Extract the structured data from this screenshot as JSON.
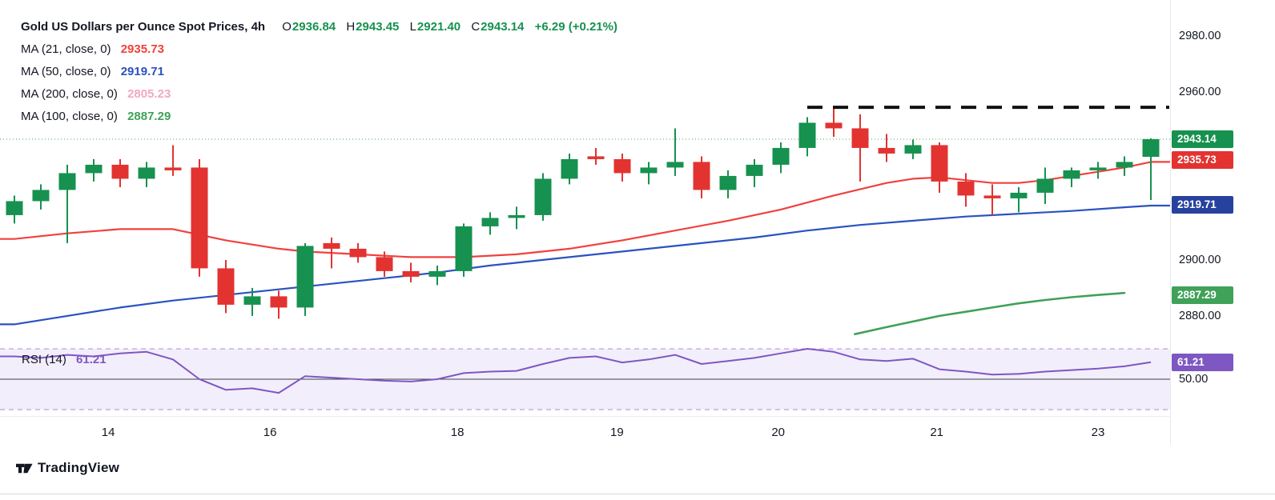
{
  "colors": {
    "up": "#17914f",
    "down": "#e23331",
    "ma21": "#f0413d",
    "ma50": "#2a52c0",
    "ma100": "#40a159",
    "ma200": "#f3a8c0",
    "rsi": "#7e57c2",
    "rsi_bg": "#f3eefb",
    "rsi_border": "#a98fd6",
    "resistance": "#111111",
    "text": "#131722"
  },
  "legend": {
    "title": "Gold US Dollars per Ounce Spot Prices, 4h",
    "ohlc": {
      "o_label": "O",
      "o": "2936.84",
      "h_label": "H",
      "h": "2943.45",
      "l_label": "L",
      "l": "2921.40",
      "c_label": "C",
      "c": "2943.14",
      "change": "+6.29 (+0.21%)"
    },
    "ma_rows": [
      {
        "label": "MA (21, close, 0)",
        "value": "2935.73",
        "color": "#f0413d"
      },
      {
        "label": "MA (50, close, 0)",
        "value": "2919.71",
        "color": "#2a52c0"
      },
      {
        "label": "MA (200, close, 0)",
        "value": "2805.23",
        "color": "#f3a8c0"
      },
      {
        "label": "MA (100, close, 0)",
        "value": "2887.29",
        "color": "#40a159"
      }
    ]
  },
  "rsi_pane": {
    "label": "RSI (14)",
    "value": "61.21"
  },
  "price_axis": {
    "ticks": [
      {
        "label": "2980.00",
        "price": 2980
      },
      {
        "label": "2960.00",
        "price": 2960
      },
      {
        "label": "2900.00",
        "price": 2900
      },
      {
        "label": "2880.00",
        "price": 2880
      }
    ],
    "badges": [
      {
        "label": "2943.14",
        "price": 2943.14,
        "color": "#17914f"
      },
      {
        "label": "2935.73",
        "price": 2935.73,
        "color": "#e23331"
      },
      {
        "label": "2919.71",
        "price": 2919.71,
        "color": "#27429e"
      },
      {
        "label": "2887.29",
        "price": 2887.29,
        "color": "#40a159"
      }
    ]
  },
  "rsi_axis": {
    "tick": {
      "label": "50.00",
      "value": 50
    },
    "badge": {
      "label": "61.21",
      "value": 61.21,
      "color": "#7e57c2"
    }
  },
  "time_axis": {
    "labels": [
      {
        "text": "14",
        "candle": 3.55
      },
      {
        "text": "16",
        "candle": 9.67
      },
      {
        "text": "18",
        "candle": 16.76
      },
      {
        "text": "19",
        "candle": 22.8
      },
      {
        "text": "20",
        "candle": 28.9
      },
      {
        "text": "21",
        "candle": 34.9
      },
      {
        "text": "23",
        "candle": 41.0
      }
    ]
  },
  "footer": {
    "brand": "TradingView"
  },
  "chart_data": [
    {
      "type": "candlestick",
      "title": "Gold US Dollars per Ounce Spot Prices",
      "interval": "4h",
      "ylim": [
        2869.4,
        2987.7
      ],
      "x_axis_labels": [
        "14",
        "16",
        "18",
        "19",
        "20",
        "21",
        "23"
      ],
      "last_candle": {
        "open": 2936.84,
        "high": 2943.45,
        "low": 2921.4,
        "close": 2943.14,
        "change": "+6.29 (+0.21%)"
      },
      "candles_ohlc": [
        [
          2916,
          2923,
          2913,
          2921
        ],
        [
          2921,
          2927,
          2918,
          2925
        ],
        [
          2925,
          2934,
          2906,
          2931
        ],
        [
          2931,
          2936,
          2928,
          2934
        ],
        [
          2934,
          2936,
          2926,
          2929
        ],
        [
          2929,
          2935,
          2926,
          2933
        ],
        [
          2933,
          2941,
          2930,
          2932
        ],
        [
          2933,
          2936,
          2894,
          2897
        ],
        [
          2897,
          2900,
          2881,
          2884
        ],
        [
          2884,
          2890,
          2880,
          2887
        ],
        [
          2887,
          2889,
          2879,
          2883
        ],
        [
          2883,
          2906,
          2880,
          2905
        ],
        [
          2906,
          2908,
          2897,
          2904
        ],
        [
          2904,
          2906,
          2899,
          2901
        ],
        [
          2901,
          2903,
          2894,
          2896
        ],
        [
          2896,
          2899,
          2892,
          2894
        ],
        [
          2894,
          2898,
          2891,
          2896
        ],
        [
          2896,
          2913,
          2894,
          2912
        ],
        [
          2912,
          2917,
          2909,
          2915
        ],
        [
          2915,
          2919,
          2911,
          2916
        ],
        [
          2916,
          2931,
          2914,
          2929
        ],
        [
          2929,
          2938,
          2927,
          2936
        ],
        [
          2937,
          2940,
          2934,
          2936
        ],
        [
          2936,
          2938,
          2928,
          2931
        ],
        [
          2931,
          2935,
          2927,
          2933
        ],
        [
          2933,
          2947,
          2930,
          2935
        ],
        [
          2935,
          2937,
          2922,
          2925
        ],
        [
          2925,
          2932,
          2922,
          2930
        ],
        [
          2930,
          2936,
          2926,
          2934
        ],
        [
          2934,
          2942,
          2931,
          2940
        ],
        [
          2940,
          2951,
          2937,
          2949
        ],
        [
          2949,
          2955,
          2944,
          2947
        ],
        [
          2947,
          2952,
          2928,
          2940
        ],
        [
          2940,
          2945,
          2935,
          2938
        ],
        [
          2938,
          2943,
          2936,
          2941
        ],
        [
          2941,
          2942,
          2924,
          2928
        ],
        [
          2928,
          2931,
          2919,
          2923
        ],
        [
          2923,
          2927,
          2916,
          2922
        ],
        [
          2922,
          2926,
          2917,
          2924
        ],
        [
          2924,
          2933,
          2920,
          2929
        ],
        [
          2929,
          2933,
          2926,
          2932
        ],
        [
          2932,
          2935,
          2929,
          2933
        ],
        [
          2933,
          2937,
          2930,
          2935
        ],
        [
          2936.84,
          2943.45,
          2921.4,
          2943.14
        ]
      ],
      "overlays": [
        {
          "name": "MA (21, close, 0)",
          "short": "ma21",
          "value": 2935.73,
          "color": "#f0413d",
          "extend_left": true,
          "extend_right": true,
          "points": [
            [
              0,
              2907.5
            ],
            [
              2,
              2909.5
            ],
            [
              4,
              2911
            ],
            [
              6,
              2911
            ],
            [
              7,
              2909
            ],
            [
              8,
              2907
            ],
            [
              9,
              2905.5
            ],
            [
              10,
              2904
            ],
            [
              11,
              2903
            ],
            [
              13,
              2902
            ],
            [
              15,
              2901
            ],
            [
              17,
              2901
            ],
            [
              19,
              2902
            ],
            [
              21,
              2904
            ],
            [
              23,
              2907
            ],
            [
              25,
              2910.5
            ],
            [
              27,
              2914
            ],
            [
              29,
              2918
            ],
            [
              31,
              2923
            ],
            [
              33,
              2927.5
            ],
            [
              34,
              2929
            ],
            [
              35,
              2929.5
            ],
            [
              36,
              2928.5
            ],
            [
              37,
              2927.5
            ],
            [
              38,
              2927.5
            ],
            [
              39,
              2928.5
            ],
            [
              40,
              2930
            ],
            [
              41,
              2931.5
            ],
            [
              42,
              2933
            ],
            [
              43,
              2935
            ]
          ]
        },
        {
          "name": "MA (50, close, 0)",
          "short": "ma50",
          "value": 2919.71,
          "color": "#2a52c0",
          "extend_left": true,
          "extend_right": true,
          "points": [
            [
              0,
              2877
            ],
            [
              2,
              2880
            ],
            [
              4,
              2883
            ],
            [
              6,
              2885.5
            ],
            [
              8,
              2887.5
            ],
            [
              10,
              2889.5
            ],
            [
              12,
              2891.5
            ],
            [
              14,
              2893.5
            ],
            [
              16,
              2895.5
            ],
            [
              18,
              2898
            ],
            [
              20,
              2900
            ],
            [
              22,
              2902
            ],
            [
              24,
              2904
            ],
            [
              26,
              2906
            ],
            [
              28,
              2908
            ],
            [
              30,
              2910.5
            ],
            [
              32,
              2912.5
            ],
            [
              34,
              2914
            ],
            [
              36,
              2915.5
            ],
            [
              38,
              2916.5
            ],
            [
              40,
              2917.5
            ],
            [
              42,
              2918.8
            ],
            [
              43,
              2919.4
            ]
          ]
        },
        {
          "name": "MA (100, close, 0)",
          "short": "ma100",
          "value": 2887.29,
          "color": "#40a159",
          "extend_left": false,
          "extend_right": false,
          "points": [
            [
              31.8,
              2873.5
            ],
            [
              33,
              2876
            ],
            [
              34,
              2878
            ],
            [
              35,
              2880
            ],
            [
              36,
              2881.5
            ],
            [
              37,
              2883
            ],
            [
              38,
              2884.5
            ],
            [
              39,
              2885.7
            ],
            [
              40,
              2886.7
            ],
            [
              41,
              2887.5
            ],
            [
              42,
              2888.2
            ]
          ]
        }
      ],
      "ma200_value_not_plotted": 2805.23,
      "resistance_dashed": {
        "price": 2954.5,
        "from_candle": 30
      },
      "last_price_line": {
        "price": 2943.14
      }
    },
    {
      "type": "line",
      "name": "RSI (14)",
      "value": 61.21,
      "color": "#7e57c2",
      "band": [
        30,
        70
      ],
      "midline": 50,
      "points": [
        [
          0,
          65
        ],
        [
          1,
          64
        ],
        [
          2,
          66
        ],
        [
          3,
          65
        ],
        [
          4,
          67
        ],
        [
          5,
          68
        ],
        [
          6,
          63
        ],
        [
          7,
          50
        ],
        [
          8,
          43
        ],
        [
          9,
          44
        ],
        [
          10,
          41
        ],
        [
          11,
          52
        ],
        [
          12,
          51
        ],
        [
          13,
          50
        ],
        [
          14,
          49
        ],
        [
          15,
          48.5
        ],
        [
          16,
          50
        ],
        [
          17,
          54
        ],
        [
          18,
          55
        ],
        [
          19,
          55.5
        ],
        [
          20,
          60
        ],
        [
          21,
          64
        ],
        [
          22,
          65
        ],
        [
          23,
          61
        ],
        [
          24,
          63
        ],
        [
          25,
          66
        ],
        [
          26,
          60
        ],
        [
          27,
          62
        ],
        [
          28,
          64
        ],
        [
          29,
          67
        ],
        [
          30,
          70
        ],
        [
          31,
          68
        ],
        [
          32,
          63
        ],
        [
          33,
          62
        ],
        [
          34,
          63.5
        ],
        [
          35,
          56.5
        ],
        [
          36,
          55
        ],
        [
          37,
          53
        ],
        [
          38,
          53.5
        ],
        [
          39,
          55
        ],
        [
          40,
          56
        ],
        [
          41,
          57
        ],
        [
          42,
          58.5
        ],
        [
          43,
          61.21
        ]
      ]
    }
  ]
}
